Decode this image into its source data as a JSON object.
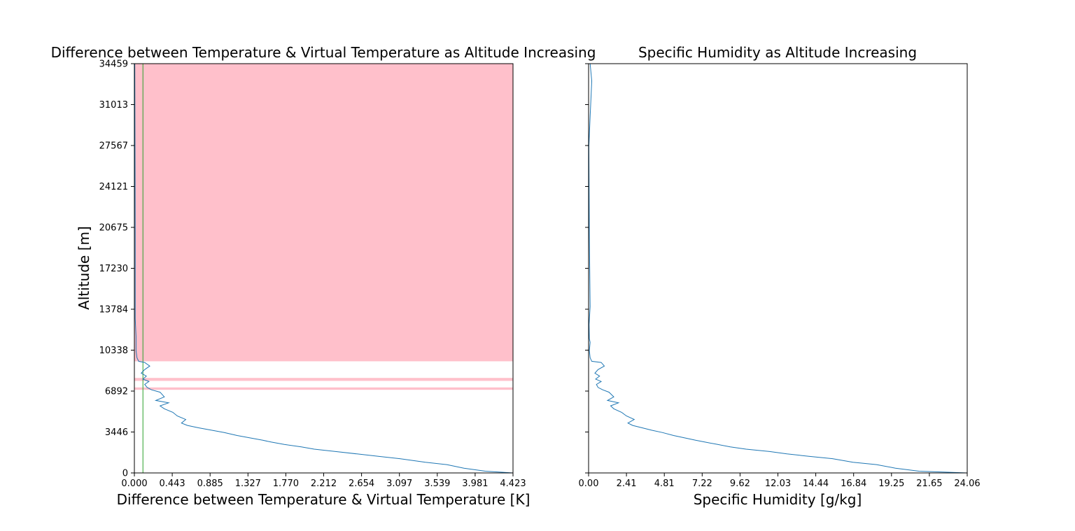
{
  "chart_data": [
    {
      "type": "line",
      "title": "Difference between Temperature & Virtual Temperature as Altitude Increasing",
      "xlabel": "Difference between Temperature & Virtual Temperature [K]",
      "ylabel": "Altitude [m]",
      "xlim": [
        0,
        4.423
      ],
      "ylim": [
        0,
        34459
      ],
      "xticks": [
        "0.000",
        "0.443",
        "0.885",
        "1.327",
        "1.770",
        "2.212",
        "2.654",
        "3.097",
        "3.539",
        "3.981",
        "4.423"
      ],
      "yticks": [
        "0",
        "3446",
        "6892",
        "10338",
        "13784",
        "17230",
        "20675",
        "24121",
        "27567",
        "31013",
        "34459"
      ],
      "grid": false,
      "line_color": "#1f77b4",
      "reference_line": {
        "x": 0.1,
        "color": "#2ca02c"
      },
      "shaded_bands": {
        "color": "#ffc0cb",
        "y_ranges": [
          [
            9400,
            34459
          ],
          [
            7750,
            8000
          ],
          [
            7000,
            7200
          ]
        ]
      },
      "series": [
        {
          "x": [
            4.423,
            4.1,
            3.85,
            3.65,
            3.4,
            3.1,
            2.85,
            2.6,
            2.35,
            2.1,
            1.95,
            1.75,
            1.6,
            1.5,
            1.35,
            1.2,
            1.05,
            0.9,
            0.75,
            0.62,
            0.55,
            0.6,
            0.5,
            0.45,
            0.35,
            0.3,
            0.4,
            0.25,
            0.35,
            0.3,
            0.2,
            0.15,
            0.12,
            0.17,
            0.1,
            0.14,
            0.08,
            0.12,
            0.18,
            0.12,
            0.05,
            0.03,
            0.02,
            0.02,
            0.02,
            0.01,
            0.01,
            0.005
          ],
          "y": [
            0,
            150,
            400,
            700,
            900,
            1200,
            1400,
            1600,
            1800,
            2000,
            2200,
            2400,
            2600,
            2750,
            2950,
            3150,
            3400,
            3600,
            3800,
            4000,
            4200,
            4500,
            4800,
            5100,
            5400,
            5650,
            5900,
            6100,
            6400,
            6800,
            7000,
            7200,
            7450,
            7700,
            7900,
            8150,
            8400,
            8700,
            9000,
            9300,
            9400,
            9700,
            10300,
            11000,
            11500,
            13000,
            20000,
            34459
          ]
        }
      ]
    },
    {
      "type": "line",
      "title": "Specific Humidity as Altitude Increasing",
      "xlabel": "Specific Humidity [g/kg]",
      "ylabel": "",
      "xlim": [
        0,
        24.06
      ],
      "ylim": [
        0,
        34459
      ],
      "xticks": [
        "0.00",
        "2.41",
        "4.81",
        "7.22",
        "9.62",
        "12.03",
        "14.44",
        "16.84",
        "19.25",
        "21.65",
        "24.06"
      ],
      "grid": false,
      "line_color": "#1f77b4",
      "series": [
        {
          "x": [
            24.06,
            21.0,
            19.5,
            18.3,
            16.8,
            15.5,
            14.0,
            12.6,
            11.5,
            10.0,
            9.0,
            8.2,
            7.4,
            6.8,
            6.1,
            5.4,
            4.7,
            4.0,
            3.4,
            2.8,
            2.5,
            2.9,
            2.4,
            2.1,
            1.6,
            1.4,
            1.9,
            1.2,
            1.6,
            1.3,
            0.9,
            0.6,
            0.5,
            0.8,
            0.45,
            0.7,
            0.4,
            0.6,
            1.0,
            0.8,
            0.2,
            0.1,
            0.05,
            0.1,
            0.05,
            0.03,
            0.1,
            0.05,
            0.02,
            0.1,
            0.2,
            0.1
          ],
          "y": [
            0,
            150,
            400,
            700,
            900,
            1200,
            1400,
            1600,
            1800,
            2000,
            2200,
            2400,
            2600,
            2750,
            2950,
            3150,
            3400,
            3600,
            3800,
            4000,
            4200,
            4500,
            4800,
            5100,
            5400,
            5650,
            5900,
            6100,
            6400,
            6800,
            7000,
            7200,
            7450,
            7700,
            7900,
            8150,
            8400,
            8700,
            9000,
            9300,
            9400,
            9700,
            10300,
            11000,
            11300,
            12500,
            14000,
            20000,
            27500,
            30000,
            33000,
            34459
          ]
        }
      ]
    }
  ]
}
